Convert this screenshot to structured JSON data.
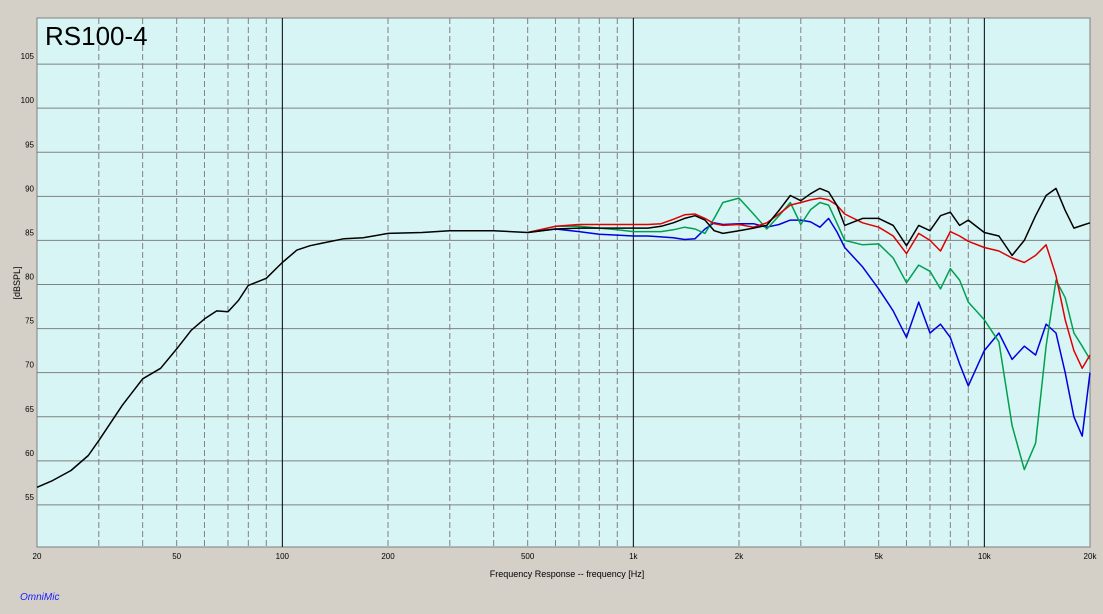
{
  "chart_data": {
    "type": "line",
    "title": "RS100-4",
    "xlabel": "Frequency Response -- frequency [Hz]",
    "ylabel": "[dBSPL]",
    "footer": "OmniMic",
    "xscale": "log",
    "background": "#d8f5f5",
    "xlim": [
      20,
      20000
    ],
    "ylim": [
      50,
      110
    ],
    "xticks": [
      20,
      50,
      100,
      200,
      500,
      {
        "value": 1000,
        "label": "1k"
      },
      {
        "value": 2000,
        "label": "2k"
      },
      {
        "value": 5000,
        "label": "5k"
      },
      {
        "value": 10000,
        "label": "10k"
      },
      {
        "value": 20000,
        "label": "20k"
      }
    ],
    "xgrid": [
      30,
      40,
      50,
      60,
      70,
      80,
      90,
      100,
      200,
      300,
      400,
      500,
      600,
      700,
      800,
      900,
      1000,
      2000,
      3000,
      4000,
      5000,
      6000,
      7000,
      8000,
      9000,
      10000
    ],
    "yticks": [
      55,
      60,
      65,
      70,
      75,
      80,
      85,
      90,
      95,
      100,
      105
    ],
    "x": [
      20,
      22,
      25,
      28,
      30,
      35,
      40,
      45,
      50,
      55,
      60,
      65,
      70,
      75,
      80,
      90,
      100,
      110,
      120,
      130,
      150,
      170,
      200,
      250,
      300,
      400,
      500,
      600,
      700,
      800,
      900,
      1000,
      1100,
      1200,
      1300,
      1400,
      1500,
      1600,
      1700,
      1800,
      2000,
      2200,
      2400,
      2600,
      2800,
      3000,
      3200,
      3400,
      3600,
      3800,
      4000,
      4500,
      5000,
      5500,
      6000,
      6500,
      7000,
      7500,
      8000,
      8500,
      9000,
      10000,
      11000,
      12000,
      13000,
      14000,
      15000,
      16000,
      17000,
      18000,
      19000,
      20000
    ],
    "series": [
      {
        "color": "#0000e0",
        "values": [
          null,
          null,
          null,
          null,
          null,
          null,
          null,
          null,
          null,
          null,
          null,
          null,
          null,
          null,
          null,
          null,
          null,
          null,
          null,
          null,
          null,
          null,
          null,
          null,
          null,
          null,
          85.9,
          86.3,
          86.0,
          85.7,
          85.6,
          85.5,
          85.5,
          85.4,
          85.3,
          85.1,
          85.2,
          86.3,
          87.0,
          86.8,
          86.9,
          86.9,
          86.5,
          86.8,
          87.3,
          87.3,
          87.1,
          86.5,
          87.5,
          86.0,
          84.2,
          82.0,
          79.5,
          77.0,
          74.0,
          78.0,
          74.5,
          75.5,
          74.0,
          71.0,
          68.5,
          72.5,
          74.5,
          71.5,
          73.0,
          72.0,
          75.5,
          74.5,
          70.0,
          65.0,
          62.8,
          70.0
        ]
      },
      {
        "color": "#00a050",
        "values": [
          null,
          null,
          null,
          null,
          null,
          null,
          null,
          null,
          null,
          null,
          null,
          null,
          null,
          null,
          null,
          null,
          null,
          null,
          null,
          null,
          null,
          null,
          null,
          null,
          null,
          null,
          85.9,
          86.6,
          86.6,
          86.4,
          86.2,
          86.0,
          86.0,
          86.0,
          86.2,
          86.5,
          86.3,
          85.8,
          87.5,
          89.3,
          89.8,
          88.0,
          86.3,
          87.8,
          89.3,
          86.8,
          88.5,
          89.3,
          89.0,
          87.0,
          85.0,
          84.5,
          84.6,
          83.0,
          80.2,
          82.2,
          81.5,
          79.5,
          81.8,
          80.5,
          78.0,
          76.0,
          73.5,
          64.0,
          59.0,
          62.0,
          73.0,
          80.5,
          78.5,
          74.5,
          73.0,
          71.5
        ]
      },
      {
        "color": "#e00000",
        "values": [
          null,
          null,
          null,
          null,
          null,
          null,
          null,
          null,
          null,
          null,
          null,
          null,
          null,
          null,
          null,
          null,
          null,
          null,
          null,
          null,
          null,
          null,
          null,
          null,
          null,
          null,
          85.9,
          86.6,
          86.8,
          86.8,
          86.8,
          86.8,
          86.8,
          86.9,
          87.4,
          87.9,
          88.0,
          87.5,
          86.9,
          86.7,
          86.8,
          86.5,
          87.0,
          88.0,
          89.0,
          89.3,
          89.6,
          89.8,
          89.6,
          89.0,
          88.0,
          87.0,
          86.5,
          85.5,
          83.5,
          85.8,
          85.0,
          83.8,
          86.0,
          85.5,
          84.9,
          84.2,
          83.8,
          83.0,
          82.5,
          83.3,
          84.5,
          81.0,
          76.0,
          72.5,
          70.5,
          72.0
        ]
      },
      {
        "color": "#000000",
        "values": [
          57.0,
          57.7,
          58.9,
          60.6,
          62.3,
          66.3,
          69.3,
          70.5,
          72.7,
          74.8,
          76.1,
          77.0,
          76.9,
          78.2,
          79.9,
          80.7,
          82.5,
          83.9,
          84.4,
          84.7,
          85.2,
          85.3,
          85.8,
          85.9,
          86.1,
          86.1,
          85.9,
          86.3,
          86.4,
          86.4,
          86.4,
          86.4,
          86.4,
          86.6,
          87.0,
          87.5,
          87.8,
          87.3,
          86.1,
          85.8,
          86.1,
          86.4,
          86.7,
          88.4,
          90.1,
          89.5,
          90.3,
          90.9,
          90.5,
          89.0,
          86.7,
          87.5,
          87.5,
          86.7,
          84.4,
          86.7,
          86.1,
          87.8,
          88.2,
          86.7,
          87.3,
          85.9,
          85.5,
          83.3,
          85.0,
          87.8,
          90.1,
          90.9,
          88.4,
          86.4,
          86.7,
          87.0
        ]
      }
    ]
  }
}
